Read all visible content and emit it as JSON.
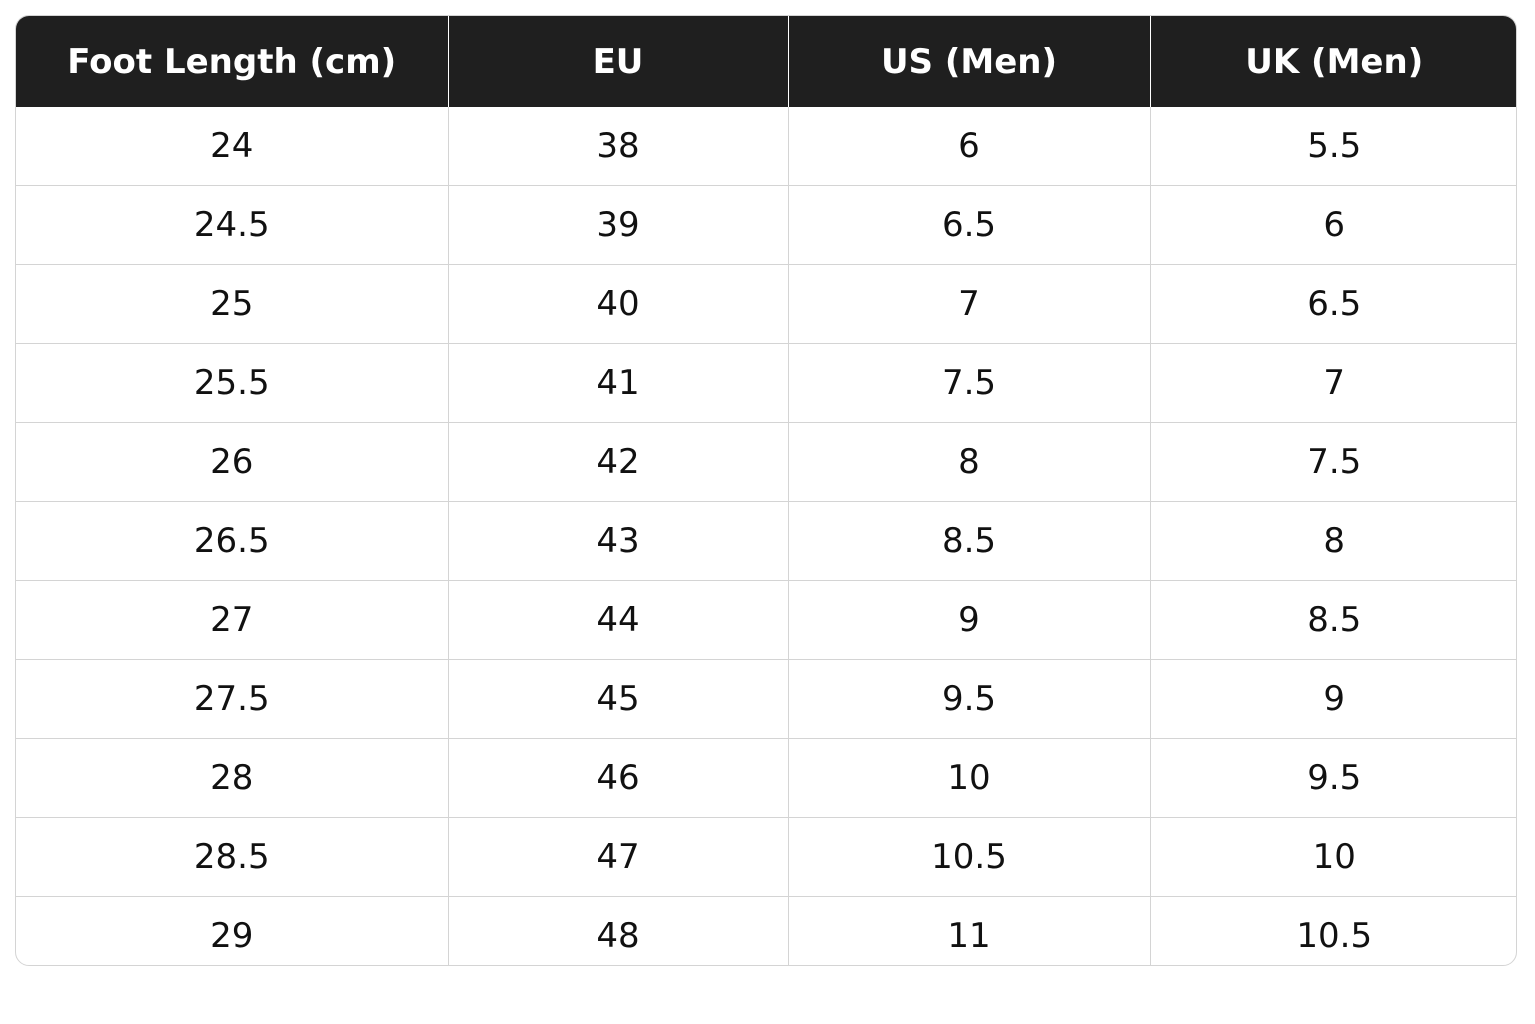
{
  "table": {
    "headers": [
      "Foot Length (cm)",
      "EU",
      "US (Men)",
      "UK (Men)"
    ],
    "rows": [
      [
        "24",
        "38",
        "6",
        "5.5"
      ],
      [
        "24.5",
        "39",
        "6.5",
        "6"
      ],
      [
        "25",
        "40",
        "7",
        "6.5"
      ],
      [
        "25.5",
        "41",
        "7.5",
        "7"
      ],
      [
        "26",
        "42",
        "8",
        "7.5"
      ],
      [
        "26.5",
        "43",
        "8.5",
        "8"
      ],
      [
        "27",
        "44",
        "9",
        "8.5"
      ],
      [
        "27.5",
        "45",
        "9.5",
        "9"
      ],
      [
        "28",
        "46",
        "10",
        "9.5"
      ],
      [
        "28.5",
        "47",
        "10.5",
        "10"
      ],
      [
        "29",
        "48",
        "11",
        "10.5"
      ]
    ]
  },
  "colors": {
    "header_background": "#1f1f1f",
    "header_text": "#ffffff",
    "grid_line": "#d4d4d4",
    "cell_text": "#111111"
  }
}
